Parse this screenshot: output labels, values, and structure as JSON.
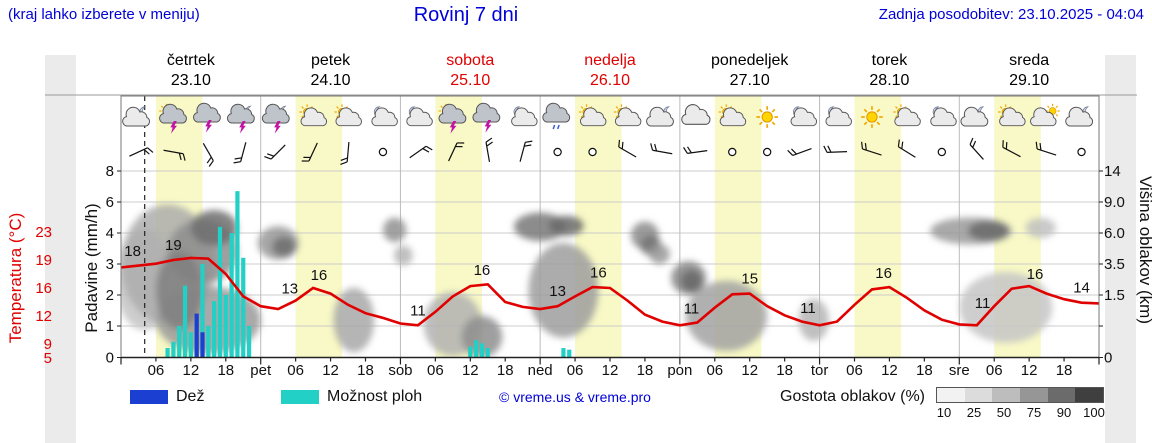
{
  "header": {
    "hint": "(kraj lahko izberete v meniju)",
    "title": "Rovinj 7 dni",
    "updated": "Zadnja posodobitev: 23.10.2025 - 04:04",
    "accent_color": "#0000d8"
  },
  "days": [
    {
      "name": "četrtek",
      "date": "23.10",
      "color": "#000000"
    },
    {
      "name": "petek",
      "date": "24.10",
      "color": "#000000"
    },
    {
      "name": "sobota",
      "date": "25.10",
      "color": "#e00000"
    },
    {
      "name": "nedelja",
      "date": "26.10",
      "color": "#e00000"
    },
    {
      "name": "ponedeljek",
      "date": "27.10",
      "color": "#000000"
    },
    {
      "name": "torek",
      "date": "28.10",
      "color": "#000000"
    },
    {
      "name": "sreda",
      "date": "29.10",
      "color": "#000000"
    }
  ],
  "axes": {
    "temperature": {
      "label": "Temperatura (°C)",
      "color": "#e00000",
      "ticks": [
        "23",
        "19",
        "16",
        "12",
        "9",
        "5"
      ]
    },
    "precipitation": {
      "label": "Padavine (mm/h)",
      "ticks": [
        "8",
        "6",
        "4",
        "3",
        "2",
        "1",
        "0"
      ]
    },
    "cloud_height": {
      "label": "Višina oblakov (km)",
      "ticks": [
        "14",
        "9.0",
        "6.0",
        "3.5",
        "1.5",
        "0"
      ]
    },
    "x_labels": [
      "06",
      "12",
      "18",
      "pet",
      "06",
      "12",
      "18",
      "sob",
      "06",
      "12",
      "18",
      "ned",
      "06",
      "12",
      "18",
      "pon",
      "06",
      "12",
      "18",
      "tor",
      "06",
      "12",
      "18",
      "sre",
      "06",
      "12",
      "18"
    ]
  },
  "legend": {
    "rain_label": "Dež",
    "rain_color": "#1b3fd0",
    "showers_label": "Možnost ploh",
    "showers_color": "#22d0c5",
    "copyright": "© vreme.us & vreme.pro",
    "cloud_density_label": "Gostota oblakov (%)",
    "cloud_scale_ticks": [
      "10",
      "25",
      "50",
      "75",
      "90",
      "100"
    ]
  },
  "colors": {
    "day_band": "#f8f9c6",
    "grid": "#cccccc",
    "cloud_icon_light": "#ebebeb",
    "cloud_icon_dark": "#bfc4cb",
    "bolt": "#c213a5"
  },
  "now_line_hour": 4.07,
  "symbols": {
    "weather_icons": [
      "cloudmoon",
      "stormsun",
      "storm",
      "stormmoon",
      "stormmoon",
      "suncloud",
      "suncloud",
      "mooncloud",
      "mooncloud",
      "stormsun",
      "storm",
      "mooncloud",
      "raincloud",
      "suncloud",
      "suncloud",
      "cloudmoon",
      "cloud",
      "suncloud",
      "sun",
      "mooncloud",
      "mooncloud",
      "sun",
      "suncloud",
      "mooncloud",
      "cloudmoon",
      "suncloud",
      "cloudsun",
      "cloudmoon"
    ],
    "wind_barbs": [
      {
        "dir": 65
      },
      {
        "dir": 100
      },
      {
        "dir": 150
      },
      {
        "dir": 195
      },
      {
        "dir": 225
      },
      {
        "dir": 205
      },
      {
        "dir": 185
      },
      {
        "calm": true
      },
      {
        "dir": 55
      },
      {
        "dir": 25
      },
      {
        "dir": 350
      },
      {
        "dir": 15
      },
      {
        "calm": true
      },
      {
        "calm": true
      },
      {
        "dir": 300
      },
      {
        "dir": 280
      },
      {
        "dir": 262
      },
      {
        "calm": true
      },
      {
        "calm": true
      },
      {
        "dir": 250
      },
      {
        "dir": 268
      },
      {
        "dir": 288
      },
      {
        "dir": 302
      },
      {
        "calm": true
      },
      {
        "dir": 318
      },
      {
        "dir": 298
      },
      {
        "dir": 288
      },
      {
        "calm": true
      }
    ]
  },
  "chart_data": {
    "type": "line",
    "title": "Rovinj 7 dni",
    "x_unit": "hours from 23.10.2025 00:00, span 7 days (168 h)",
    "x_step_hours": 3,
    "grid": true,
    "y_axis_temperature_c": [
      23,
      19,
      16,
      12,
      9,
      5
    ],
    "y_axis_precip_mm": [
      8,
      6,
      4,
      3,
      2,
      1,
      0
    ],
    "y_axis_cloud_km": [
      14,
      9.0,
      6.0,
      3.5,
      1.5,
      0
    ],
    "temperature_series": {
      "name": "Temperatura",
      "unit": "°C",
      "color": "#e00000",
      "values": [
        18.2,
        18.4,
        18.6,
        19.0,
        19.3,
        19.2,
        17.5,
        14.8,
        13.4,
        13.0,
        14.2,
        16.0,
        15.2,
        13.6,
        12.4,
        11.8,
        11.2,
        11.0,
        12.6,
        14.8,
        16.2,
        16.4,
        14.0,
        13.3,
        13.0,
        13.4,
        14.8,
        16.1,
        16.0,
        14.2,
        12.2,
        11.4,
        11.0,
        11.3,
        13.2,
        15.1,
        15.2,
        13.4,
        12.1,
        11.4,
        11.0,
        11.4,
        13.6,
        15.8,
        16.1,
        14.6,
        12.8,
        11.6,
        11.1,
        11.0,
        13.4,
        15.9,
        16.2,
        15.2,
        14.4,
        13.9,
        13.8
      ]
    },
    "temperature_point_labels": [
      [
        2,
        "18"
      ],
      [
        9,
        "19"
      ],
      [
        29,
        "13"
      ],
      [
        34,
        "16"
      ],
      [
        51,
        "11"
      ],
      [
        62,
        "16"
      ],
      [
        75,
        "13"
      ],
      [
        82,
        "16"
      ],
      [
        98,
        "11"
      ],
      [
        108,
        "15"
      ],
      [
        118,
        "11"
      ],
      [
        131,
        "16"
      ],
      [
        148,
        "11"
      ],
      [
        157,
        "16"
      ],
      [
        165,
        "14"
      ]
    ],
    "showers_bars_mm": [
      [
        8,
        0.3
      ],
      [
        9,
        0.5
      ],
      [
        10,
        1.0
      ],
      [
        11,
        2.3
      ],
      [
        12,
        0.8
      ],
      [
        13,
        1.2
      ],
      [
        14,
        3.0
      ],
      [
        15,
        1.0
      ],
      [
        16,
        1.8
      ],
      [
        17,
        4.4
      ],
      [
        18,
        2.0
      ],
      [
        19,
        4.0
      ],
      [
        20,
        6.7
      ],
      [
        21,
        3.2
      ],
      [
        22,
        1.0
      ],
      [
        60,
        0.35
      ],
      [
        61,
        0.55
      ],
      [
        62,
        0.45
      ],
      [
        63,
        0.3
      ],
      [
        76,
        0.3
      ],
      [
        77,
        0.25
      ]
    ],
    "rain_bars_mm": [
      [
        13,
        1.4
      ],
      [
        14,
        0.8
      ]
    ],
    "cloud_blobs": [
      {
        "h": 4,
        "km": 2.5,
        "rh": 5,
        "rkm": 2.3,
        "shade": "#c4c4c4"
      },
      {
        "h": 8,
        "km": 3.5,
        "rh": 8,
        "rkm": 3.2,
        "shade": "#adadad"
      },
      {
        "h": 14,
        "km": 4.5,
        "rh": 6,
        "rkm": 2.5,
        "shade": "#8e8e8e"
      },
      {
        "h": 16,
        "km": 6.5,
        "rh": 4,
        "rkm": 1.6,
        "shade": "#6e6e6e"
      },
      {
        "h": 15,
        "km": 0.9,
        "rh": 9,
        "rkm": 0.9,
        "shade": "#9a9a9a"
      },
      {
        "h": 10,
        "km": 1.8,
        "rh": 4,
        "rkm": 1.5,
        "shade": "#808080"
      },
      {
        "h": 27,
        "km": 5.2,
        "rh": 3.5,
        "rkm": 1.4,
        "shade": "#969696"
      },
      {
        "h": 28,
        "km": 4.9,
        "rh": 2,
        "rkm": 0.8,
        "shade": "#6f6f6f"
      },
      {
        "h": 40,
        "km": 0.9,
        "rh": 3.5,
        "rkm": 0.85,
        "shade": "#a8a8a8"
      },
      {
        "h": 47,
        "km": 6.3,
        "rh": 2,
        "rkm": 1.1,
        "shade": "#909090"
      },
      {
        "h": 48.5,
        "km": 4.2,
        "rh": 1.6,
        "rkm": 0.7,
        "shade": "#b5b5b5"
      },
      {
        "h": 57,
        "km": 0.8,
        "rh": 5,
        "rkm": 0.8,
        "shade": "#b2b2b2"
      },
      {
        "h": 62,
        "km": 0.5,
        "rh": 3.5,
        "rkm": 0.5,
        "shade": "#8e8e8e"
      },
      {
        "h": 72,
        "km": 6.6,
        "rh": 4.5,
        "rkm": 1.3,
        "shade": "#787878"
      },
      {
        "h": 76,
        "km": 1.8,
        "rh": 6,
        "rkm": 1.8,
        "shade": "#9e9e9e"
      },
      {
        "h": 76.5,
        "km": 6.7,
        "rh": 3,
        "rkm": 0.9,
        "shade": "#6a6a6a"
      },
      {
        "h": 90,
        "km": 5.8,
        "rh": 2.4,
        "rkm": 1.2,
        "shade": "#8a8a8a"
      },
      {
        "h": 91,
        "km": 5.0,
        "rh": 1.8,
        "rkm": 0.7,
        "shade": "#737373"
      },
      {
        "h": 92.5,
        "km": 4.3,
        "rh": 1.8,
        "rkm": 0.6,
        "shade": "#999999"
      },
      {
        "h": 97.5,
        "km": 2.6,
        "rh": 3,
        "rkm": 1.1,
        "shade": "#848484"
      },
      {
        "h": 98,
        "km": 2.4,
        "rh": 1.8,
        "rkm": 0.7,
        "shade": "#676767"
      },
      {
        "h": 104,
        "km": 1.0,
        "rh": 7,
        "rkm": 1.0,
        "shade": "#a2a2a2"
      },
      {
        "h": 119,
        "km": 0.9,
        "rh": 2.6,
        "rkm": 0.5,
        "shade": "#b5b5b5"
      },
      {
        "h": 146,
        "km": 6.2,
        "rh": 7,
        "rkm": 1.2,
        "shade": "#9a9a9a"
      },
      {
        "h": 149,
        "km": 6.2,
        "rh": 3.5,
        "rkm": 0.9,
        "shade": "#6a6a6a"
      },
      {
        "h": 152,
        "km": 1.2,
        "rh": 8,
        "rkm": 1.1,
        "shade": "#c6c6c6"
      },
      {
        "h": 158,
        "km": 6.5,
        "rh": 2.6,
        "rkm": 0.7,
        "shade": "#c0c0c0"
      }
    ]
  }
}
